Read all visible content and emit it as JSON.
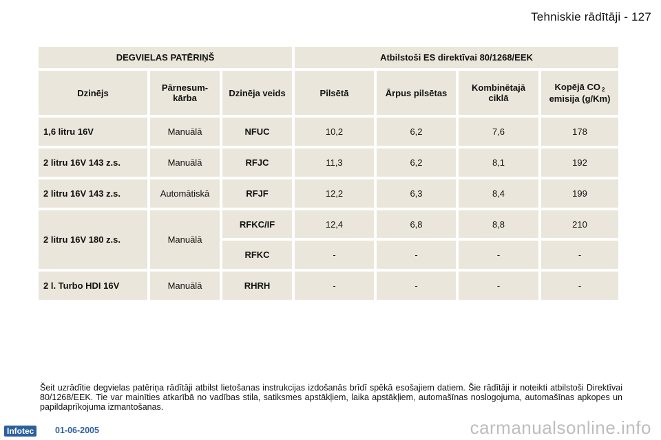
{
  "header": {
    "title": "Tehniskie rādītāji - 127"
  },
  "table": {
    "group_headers": {
      "left": "DEGVIELAS PATĒRIŅŠ",
      "right": "Atbilstoši ES direktīvai 80/1268/EEK"
    },
    "columns": {
      "engine": "Dzinējs",
      "gearbox": "Pārnesum-kārba",
      "engine_type": "Dzinēja veids",
      "urban": "Pilsētā",
      "extra_urban": "Ārpus pilsētas",
      "combined": "Kombinētajā ciklā",
      "co2_main": "Kopējā CO",
      "co2_sub": "2",
      "co2_rest": "emisija (g/Km)"
    },
    "rows": [
      {
        "engine": "1,6 litru 16V",
        "gearbox": "Manuālā",
        "type": "NFUC",
        "urban": "10,2",
        "extra": "6,2",
        "combined": "7,6",
        "co2": "178"
      },
      {
        "engine": "2 litru 16V 143 z.s.",
        "gearbox": "Manuālā",
        "type": "RFJC",
        "urban": "11,3",
        "extra": "6,2",
        "combined": "8,1",
        "co2": "192"
      },
      {
        "engine": "2 litru 16V 143 z.s.",
        "gearbox": "Automātiskā",
        "type": "RFJF",
        "urban": "12,2",
        "extra": "6,3",
        "combined": "8,4",
        "co2": "199"
      },
      {
        "engine": "2 litru 16V 180 z.s.",
        "gearbox": "Manuālā",
        "type": "RFKC/IF",
        "urban": "12,4",
        "extra": "6,8",
        "combined": "8,8",
        "co2": "210"
      },
      {
        "type": "RFKC",
        "urban": "-",
        "extra": "-",
        "combined": "-",
        "co2": "-"
      },
      {
        "engine": "2 l. Turbo HDI 16V",
        "gearbox": "Manuālā",
        "type": "RHRH",
        "urban": "-",
        "extra": "-",
        "combined": "-",
        "co2": "-"
      }
    ]
  },
  "note": "Šeit uzrādītie degvielas patēriņa rādītāji atbilst lietošanas instrukcijas izdošanās brīdī spēkā esošajiem datiem. Šie rādītāji ir noteikti atbilstoši Direktīvai 80/1268/EEK. Tie var mainīties atkarībā no vadības stila, satiksmes apstākļiem, laika apstākļiem, automašīnas noslogojuma, automašīnas apkopes un papildaprīkojuma izmantošanas.",
  "footer": {
    "logo": "Infotec",
    "date": "01-06-2005",
    "watermark": "carmanualsonline.info"
  }
}
